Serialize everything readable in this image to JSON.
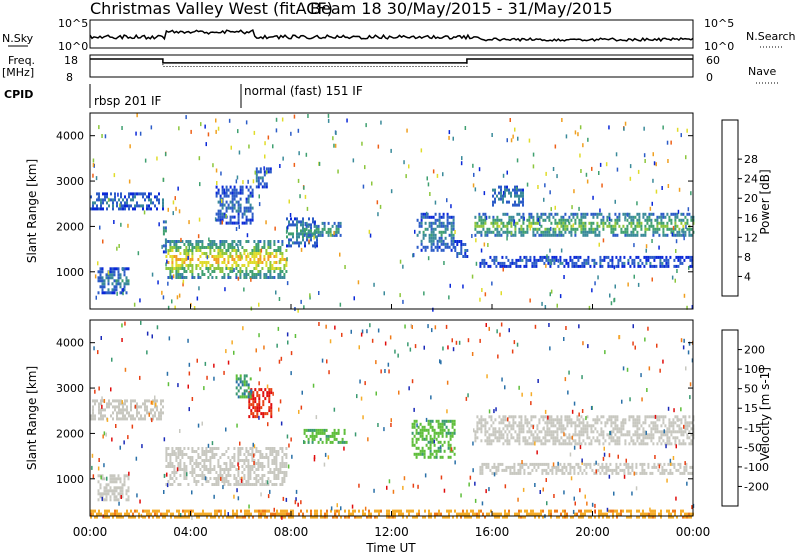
{
  "header": {
    "station": "Christmas Valley West (fitACF)",
    "beam": "Beam 18 30/May/2015 - 31/May/2015"
  },
  "summary": {
    "nsky_label": "N.Sky",
    "nsearch_label": "N.Search",
    "nsky_ticks": [
      "10^5",
      "10^0"
    ],
    "nsky_ticks_right": [
      "10^5",
      "10^0"
    ],
    "freq_label": "Freq.",
    "freq_unit": "[MHz]",
    "freq_ticks": [
      "18",
      "8"
    ],
    "nave_label": "Nave",
    "nave_ticks": [
      "60",
      "0"
    ],
    "cpid_label": "CPID",
    "cpid_segments": [
      {
        "label": "rbsp 201 IF",
        "start": 0,
        "end": 6
      },
      {
        "label": "normal (fast) 151 IF",
        "start": 6,
        "end": 24
      }
    ],
    "freq_profile": [
      [
        0,
        12
      ],
      [
        2.9,
        12
      ],
      [
        2.9,
        9.4
      ],
      [
        15,
        9.4
      ],
      [
        15,
        12
      ],
      [
        24,
        12
      ]
    ],
    "nave_profile": [
      [
        0,
        12
      ],
      [
        2.9,
        12
      ],
      [
        2.9,
        7
      ],
      [
        15,
        7
      ],
      [
        15,
        12
      ],
      [
        24,
        12
      ]
    ]
  },
  "axes": {
    "xlabel": "Time UT",
    "x_ticks": [
      "00:00",
      "04:00",
      "08:00",
      "12:00",
      "16:00",
      "20:00",
      "00:00"
    ],
    "ylabel": "Slant Range [km]",
    "y_ticks": [
      "1000",
      "2000",
      "3000",
      "4000"
    ]
  },
  "colorbars": {
    "power": {
      "label": "Power [dB]",
      "ticks": [
        "4",
        "8",
        "12",
        "16",
        "20",
        "24",
        "28"
      ],
      "colors": [
        "#0a28d8",
        "#2c5cc8",
        "#3a8a9a",
        "#3fa070",
        "#8cc63c",
        "#e0dc2a",
        "#f0a020",
        "#ee6018",
        "#e42010"
      ]
    },
    "velocity": {
      "label": "Velocity [m s-1]",
      "ticks": [
        "200",
        "100",
        "50",
        "15",
        "-15",
        "-50",
        "-100",
        "-200"
      ],
      "colors": [
        "#1a2ab8",
        "#2a70a8",
        "#3a9a70",
        "#5ebe3a",
        "#c8c8c0",
        "#f5ac28",
        "#f07a18",
        "#e84014",
        "#e00c0c"
      ]
    }
  },
  "chart_data": [
    {
      "type": "heatmap",
      "name": "power",
      "x_range_hours": [
        0,
        24
      ],
      "y_range_km": [
        180,
        4500
      ],
      "scatter_bands": [
        {
          "t0": 0.0,
          "t1": 2.9,
          "r0": 2400,
          "r1": 2750,
          "v": 9
        },
        {
          "t0": 2.9,
          "t1": 3.0,
          "r0": 1450,
          "r1": 2200,
          "v": 14
        },
        {
          "t0": 0.3,
          "t1": 1.5,
          "r0": 550,
          "r1": 1100,
          "v": 10
        },
        {
          "t0": 3.0,
          "t1": 7.8,
          "r0": 900,
          "r1": 1700,
          "v": 25
        },
        {
          "t0": 5.0,
          "t1": 6.5,
          "r0": 2100,
          "r1": 2900,
          "v": 8
        },
        {
          "t0": 6.6,
          "t1": 7.2,
          "r0": 2900,
          "r1": 3300,
          "v": 9
        },
        {
          "t0": 7.8,
          "t1": 9.0,
          "r0": 1600,
          "r1": 2200,
          "v": 12
        },
        {
          "t0": 8.5,
          "t1": 10.0,
          "r0": 1800,
          "r1": 2100,
          "v": 14
        },
        {
          "t0": 13.0,
          "t1": 14.5,
          "r0": 1500,
          "r1": 2300,
          "v": 11
        },
        {
          "t0": 14.5,
          "t1": 15.0,
          "r0": 1350,
          "r1": 1700,
          "v": 8
        },
        {
          "t0": 15.3,
          "t1": 24.0,
          "r0": 1800,
          "r1": 2300,
          "v": 18
        },
        {
          "t0": 15.5,
          "t1": 24.0,
          "r0": 1150,
          "r1": 1350,
          "v": 7
        },
        {
          "t0": 16.0,
          "t1": 17.2,
          "r0": 2500,
          "r1": 2900,
          "v": 10
        }
      ]
    },
    {
      "type": "heatmap",
      "name": "velocity",
      "x_range_hours": [
        0,
        24
      ],
      "y_range_km": [
        180,
        4500
      ],
      "scatter_bands": [
        {
          "t0": 0.0,
          "t1": 2.9,
          "r0": 2300,
          "r1": 2750,
          "v": 0
        },
        {
          "t0": 0.3,
          "t1": 1.5,
          "r0": 550,
          "r1": 1100,
          "v": 0
        },
        {
          "t0": 3.0,
          "t1": 7.8,
          "r0": 900,
          "r1": 1700,
          "v": 0
        },
        {
          "t0": 6.3,
          "t1": 7.2,
          "r0": 2400,
          "r1": 3000,
          "v": -200
        },
        {
          "t0": 5.8,
          "t1": 6.4,
          "r0": 2800,
          "r1": 3300,
          "v": 80
        },
        {
          "t0": 8.5,
          "t1": 10.2,
          "r0": 1800,
          "r1": 2100,
          "v": 40
        },
        {
          "t0": 12.8,
          "t1": 14.5,
          "r0": 1500,
          "r1": 2300,
          "v": 40
        },
        {
          "t0": 15.3,
          "t1": 24.0,
          "r0": 1800,
          "r1": 2400,
          "v": 0
        },
        {
          "t0": 15.5,
          "t1": 24.0,
          "r0": 1150,
          "r1": 1350,
          "v": 0
        },
        {
          "t0": 0.0,
          "t1": 24.0,
          "r0": 180,
          "r1": 320,
          "v": -40
        }
      ]
    }
  ]
}
